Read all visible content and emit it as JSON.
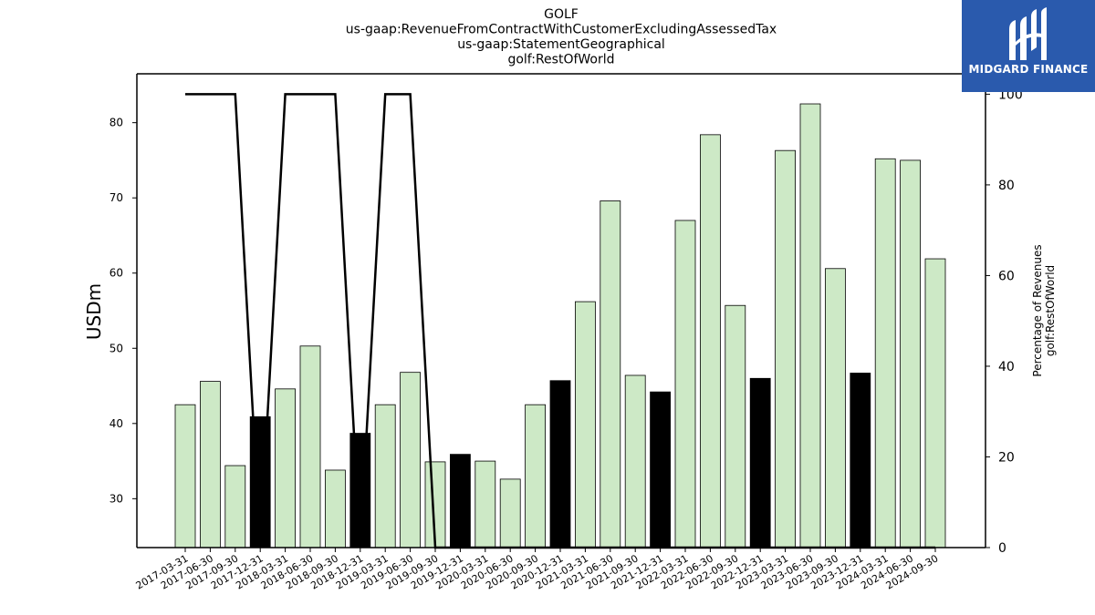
{
  "logo": {
    "text": "MIDGARD FINANCE",
    "icon": "midgard-logo-icon",
    "bg_color": "#2a5aad"
  },
  "chart_data": {
    "type": "bar",
    "title_lines": [
      "GOLF",
      "us-gaap:RevenueFromContractWithCustomerExcludingAssessedTax",
      "us-gaap:StatementGeographical",
      "golf:RestOfWorld"
    ],
    "ylabel": "USDm",
    "y2label_lines": [
      "Percentage of Revenues",
      "golf:RestOfWorld"
    ],
    "ylim": [
      23.5,
      86.5
    ],
    "y_ticks": [
      30,
      40,
      50,
      60,
      70,
      80
    ],
    "y2lim": [
      0,
      104.5
    ],
    "y2_ticks": [
      0,
      20,
      40,
      60,
      80,
      100
    ],
    "categories": [
      "2017-03-31",
      "2017-06-30",
      "2017-09-30",
      "2017-12-31",
      "2018-03-31",
      "2018-06-30",
      "2018-09-30",
      "2018-12-31",
      "2019-03-31",
      "2019-06-30",
      "2019-09-30",
      "2019-12-31",
      "2020-03-31",
      "2020-06-30",
      "2020-09-30",
      "2020-12-31",
      "2021-03-31",
      "2021-06-30",
      "2021-09-30",
      "2021-12-31",
      "2022-03-31",
      "2022-06-30",
      "2022-09-30",
      "2022-12-31",
      "2023-03-31",
      "2023-06-30",
      "2023-09-30",
      "2023-12-31",
      "2024-03-31",
      "2024-06-30",
      "2024-09-30"
    ],
    "series": [
      {
        "type": "bar",
        "values": [
          42.5,
          45.6,
          34.4,
          40.9,
          44.6,
          50.3,
          33.8,
          38.7,
          42.5,
          46.8,
          34.9,
          35.9,
          35.0,
          32.6,
          42.5,
          45.7,
          56.2,
          69.6,
          46.4,
          44.2,
          67.0,
          78.4,
          55.7,
          46.0,
          76.3,
          82.5,
          60.6,
          46.7,
          75.2,
          75.0,
          61.9
        ]
      },
      {
        "type": "line",
        "axis": "right",
        "values": [
          100,
          100,
          100,
          0,
          100,
          100,
          100,
          0,
          100,
          100,
          0,
          0,
          0,
          0,
          0,
          0,
          0,
          0,
          0,
          0,
          0,
          0,
          0,
          0,
          0,
          0,
          0,
          0,
          0,
          0,
          0
        ]
      }
    ],
    "highlight_categories": [
      "2017-12-31",
      "2018-12-31",
      "2019-12-31",
      "2020-12-31",
      "2021-12-31",
      "2022-12-31",
      "2023-12-31"
    ],
    "colors": {
      "bar": "#cde9c6",
      "highlight_bar": "#000000",
      "line": "#000000"
    },
    "grid": false
  }
}
